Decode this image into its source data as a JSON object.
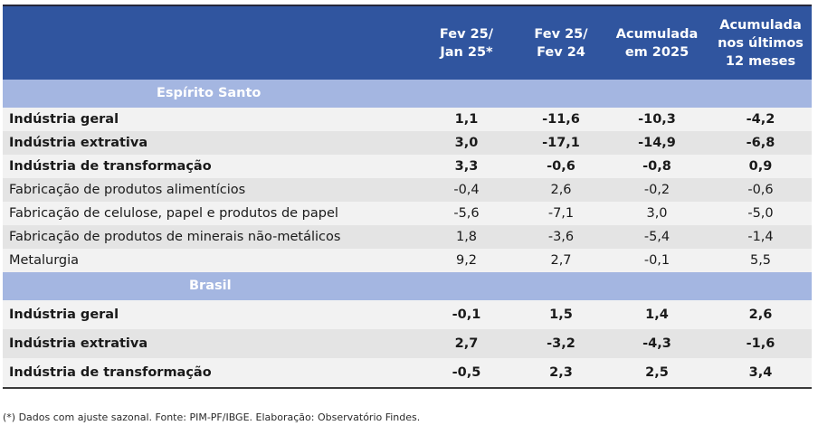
{
  "header": {
    "columns": [
      {
        "line1": "Fev 25/",
        "line2": "Jan 25*",
        "line3": ""
      },
      {
        "line1": "Fev 25/",
        "line2": "Fev 24",
        "line3": ""
      },
      {
        "line1": "Acumulada",
        "line2": "em 2025",
        "line3": ""
      },
      {
        "line1": "Acumulada",
        "line2": "nos últimos",
        "line3": "12 meses"
      }
    ]
  },
  "sections": [
    {
      "title": "Espírito Santo",
      "rows": [
        {
          "label": "Indústria geral",
          "bold": true,
          "values": [
            "1,1",
            "-11,6",
            "-10,3",
            "-4,2"
          ]
        },
        {
          "label": "Indústria extrativa",
          "bold": true,
          "values": [
            "3,0",
            "-17,1",
            "-14,9",
            "-6,8"
          ]
        },
        {
          "label": "Indústria de transformação",
          "bold": true,
          "values": [
            "3,3",
            "-0,6",
            "-0,8",
            "0,9"
          ]
        },
        {
          "label": "Fabricação de produtos alimentícios",
          "bold": false,
          "values": [
            "-0,4",
            "2,6",
            "-0,2",
            "-0,6"
          ]
        },
        {
          "label": "Fabricação de celulose, papel e produtos de papel",
          "bold": false,
          "values": [
            "-5,6",
            "-7,1",
            "3,0",
            "-5,0"
          ]
        },
        {
          "label": "Fabricação de produtos de minerais não-metálicos",
          "bold": false,
          "values": [
            "1,8",
            "-3,6",
            "-5,4",
            "-1,4"
          ]
        },
        {
          "label": "Metalurgia",
          "bold": false,
          "values": [
            "9,2",
            "2,7",
            "-0,1",
            "5,5"
          ]
        }
      ]
    },
    {
      "title": "Brasil",
      "rows": [
        {
          "label": "Indústria geral",
          "bold": true,
          "values": [
            "-0,1",
            "1,5",
            "1,4",
            "2,6"
          ]
        },
        {
          "label": "Indústria extrativa",
          "bold": true,
          "values": [
            "2,7",
            "-3,2",
            "-4,3",
            "-1,6"
          ]
        },
        {
          "label": "Indústria de transformação",
          "bold": true,
          "values": [
            "-0,5",
            "2,3",
            "2,5",
            "3,4"
          ]
        }
      ]
    }
  ],
  "footnote": "(*) Dados com ajuste sazonal. Fonte: PIM-PF/IBGE. Elaboração: Observatório Findes.",
  "colors": {
    "header_bg": "#30559f",
    "band_bg": "#a4b6e1",
    "row_light": "#f2f2f2",
    "row_dark": "#e4e4e4"
  }
}
